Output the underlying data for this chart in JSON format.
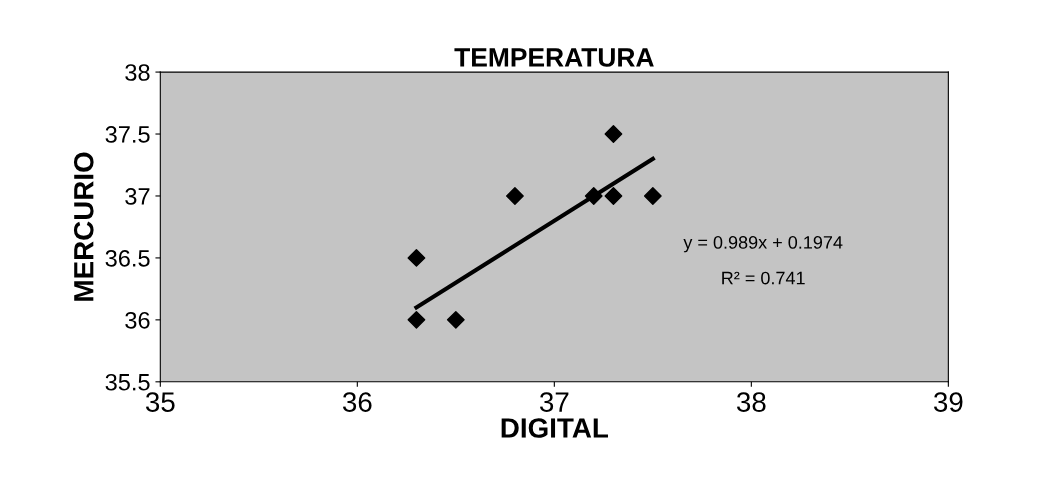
{
  "chart_data": {
    "type": "scatter",
    "title": "TEMPERATURA",
    "xlabel": "DIGITAL",
    "ylabel": "MERCURIO",
    "xlim": [
      35,
      39
    ],
    "xticks": [
      35,
      36,
      37,
      38,
      39
    ],
    "ylim": [
      35.5,
      38
    ],
    "yticks": [
      35.5,
      36,
      36.5,
      37,
      37.5,
      38
    ],
    "grid": false,
    "legend": false,
    "series": [
      {
        "color": "#000000",
        "marker": "diamond",
        "x": [
          36.3,
          36.3,
          36.5,
          36.8,
          37.2,
          37.3,
          37.3,
          37.5
        ],
        "values": [
          36.0,
          36.5,
          36.0,
          37.0,
          37.0,
          37.0,
          37.5,
          37.0
        ]
      },
      {
        "type": "line",
        "color": "#000000",
        "x": [
          36.3,
          37.5
        ],
        "values": [
          36.1,
          37.3
        ]
      }
    ],
    "annotations": [
      "y = 0.989x + 0.1974",
      "R² = 0.741"
    ]
  }
}
